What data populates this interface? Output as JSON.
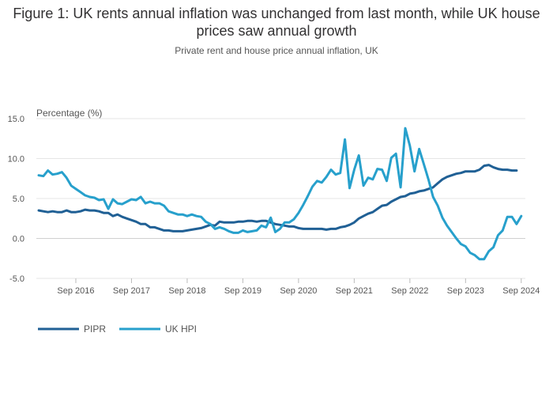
{
  "header": {
    "title": "Figure 1: UK rents annual inflation was unchanged from last month, while UK house prices saw annual growth",
    "subtitle": "Private rent and house price annual inflation, UK"
  },
  "chart_data": {
    "type": "line",
    "ylabel": "Percentage (%)",
    "ylim": [
      -5,
      15
    ],
    "yticks": [
      -5,
      0,
      5,
      10,
      15
    ],
    "ytick_labels": [
      "-5.0",
      "0.0",
      "5.0",
      "10.0",
      "15.0"
    ],
    "xticks": [
      "2016-09",
      "2017-09",
      "2018-09",
      "2019-09",
      "2020-09",
      "2021-09",
      "2022-09",
      "2023-09",
      "2024-09"
    ],
    "xtick_labels": [
      "Sep 2016",
      "Sep 2017",
      "Sep 2018",
      "Sep 2019",
      "Sep 2020",
      "Sep 2021",
      "Sep 2022",
      "Sep 2023",
      "Sep 2024"
    ],
    "grid": true,
    "legend_position": "bottom-left",
    "x_start": "2016-01",
    "x_step": "month",
    "series": [
      {
        "name": "PIPR",
        "color": "#206095",
        "values": [
          3.5,
          3.4,
          3.3,
          3.4,
          3.3,
          3.3,
          3.5,
          3.3,
          3.3,
          3.4,
          3.6,
          3.5,
          3.5,
          3.4,
          3.2,
          3.2,
          2.8,
          3.0,
          2.7,
          2.5,
          2.3,
          2.1,
          1.8,
          1.8,
          1.4,
          1.4,
          1.2,
          1.0,
          1.0,
          0.9,
          0.9,
          0.9,
          1.0,
          1.1,
          1.2,
          1.3,
          1.5,
          1.7,
          1.6,
          2.1,
          2.0,
          2.0,
          2.0,
          2.1,
          2.1,
          2.2,
          2.2,
          2.1,
          2.2,
          2.2,
          2.0,
          1.8,
          1.7,
          1.6,
          1.5,
          1.5,
          1.3,
          1.2,
          1.2,
          1.2,
          1.2,
          1.2,
          1.1,
          1.2,
          1.2,
          1.4,
          1.5,
          1.7,
          2.0,
          2.5,
          2.8,
          3.1,
          3.3,
          3.7,
          4.1,
          4.2,
          4.6,
          4.9,
          5.2,
          5.3,
          5.6,
          5.7,
          5.9,
          6.0,
          6.2,
          6.4,
          6.9,
          7.4,
          7.7,
          7.9,
          8.1,
          8.2,
          8.4,
          8.4,
          8.4,
          8.6,
          9.1,
          9.2,
          8.9,
          8.7,
          8.6,
          8.6,
          8.5,
          8.5
        ]
      },
      {
        "name": "UK HPI",
        "color": "#27A0CC",
        "values": [
          7.9,
          7.8,
          8.5,
          8.0,
          8.1,
          8.3,
          7.6,
          6.6,
          6.2,
          5.8,
          5.4,
          5.2,
          5.1,
          4.8,
          4.9,
          3.7,
          4.9,
          4.4,
          4.3,
          4.6,
          4.9,
          4.8,
          5.2,
          4.4,
          4.6,
          4.4,
          4.4,
          4.1,
          3.4,
          3.2,
          3.0,
          3.0,
          2.8,
          3.0,
          2.8,
          2.7,
          2.1,
          1.8,
          1.2,
          1.4,
          1.2,
          0.9,
          0.7,
          0.7,
          1.0,
          0.8,
          0.9,
          1.0,
          1.6,
          1.4,
          2.6,
          0.8,
          1.2,
          2.0,
          2.0,
          2.4,
          3.2,
          4.2,
          5.3,
          6.5,
          7.2,
          7.0,
          7.7,
          8.6,
          8.0,
          8.2,
          12.4,
          6.3,
          8.6,
          10.4,
          6.6,
          7.6,
          7.4,
          8.7,
          8.6,
          7.2,
          10.1,
          10.6,
          6.4,
          13.8,
          11.6,
          8.4,
          11.2,
          9.3,
          7.4,
          5.2,
          4.1,
          2.6,
          1.6,
          0.8,
          0.0,
          -0.7,
          -1.0,
          -1.8,
          -2.1,
          -2.6,
          -2.6,
          -1.6,
          -1.1,
          0.4,
          1.0,
          2.7,
          2.7,
          1.8,
          2.8
        ]
      }
    ]
  }
}
